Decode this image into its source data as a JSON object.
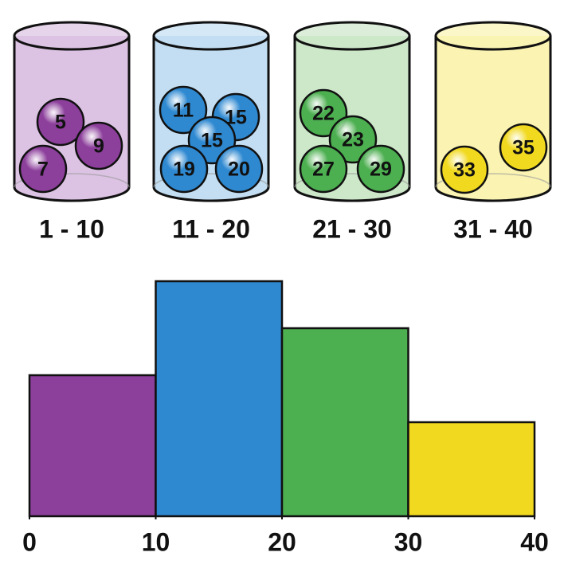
{
  "chart_data": {
    "type": "histogram",
    "bins": [
      0,
      10,
      20,
      30,
      40
    ],
    "values": [
      3,
      5,
      4,
      2
    ],
    "colors": [
      "#8c3f9b",
      "#2f89d1",
      "#4caf50",
      "#f1d91f"
    ],
    "xlim": [
      0,
      40
    ],
    "xticks": [
      0,
      10,
      20,
      30,
      40
    ],
    "ylim": [
      0,
      5
    ],
    "groups": [
      {
        "label": "1 - 10",
        "balls": [
          5,
          9,
          7
        ],
        "color": "#8c3f9b",
        "light": "#dcc2e3"
      },
      {
        "label": "11 - 20",
        "balls": [
          11,
          15,
          15,
          19,
          20
        ],
        "color": "#2f89d1",
        "light": "#c3def2"
      },
      {
        "label": "21 - 30",
        "balls": [
          22,
          23,
          27,
          29
        ],
        "color": "#4caf50",
        "light": "#cde7c9"
      },
      {
        "label": "31 - 40",
        "balls": [
          35,
          33
        ],
        "color": "#f1d91f",
        "light": "#faf3b2"
      }
    ]
  }
}
